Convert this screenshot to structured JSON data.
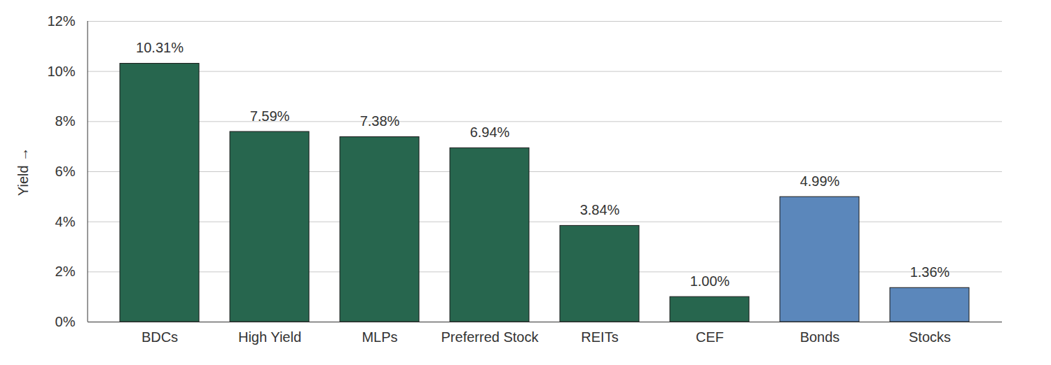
{
  "chart_data": {
    "type": "bar",
    "y_label": "Yield",
    "categories": [
      "BDCs",
      "High Yield",
      "MLPs",
      "Preferred Stock",
      "REITs",
      "CEF",
      "Bonds",
      "Stocks"
    ],
    "values": [
      10.31,
      7.59,
      7.38,
      6.94,
      3.84,
      1.0,
      4.99,
      1.36
    ],
    "value_labels": [
      "10.31%",
      "7.59%",
      "7.38%",
      "6.94%",
      "3.84%",
      "1.00%",
      "4.99%",
      "1.36%"
    ],
    "colors": [
      "#27664e",
      "#27664e",
      "#27664e",
      "#27664e",
      "#27664e",
      "#27664e",
      "#5b87bb",
      "#5b87bb"
    ],
    "ylim": [
      0,
      12
    ],
    "yticks": [
      {
        "value": 0,
        "label": "0%"
      },
      {
        "value": 2,
        "label": "2%"
      },
      {
        "value": 4,
        "label": "4%"
      },
      {
        "value": 6,
        "label": "6%"
      },
      {
        "value": 8,
        "label": "8%"
      },
      {
        "value": 10,
        "label": "10%"
      },
      {
        "value": 12,
        "label": "12%"
      }
    ],
    "grid": true,
    "data_labels": true
  }
}
